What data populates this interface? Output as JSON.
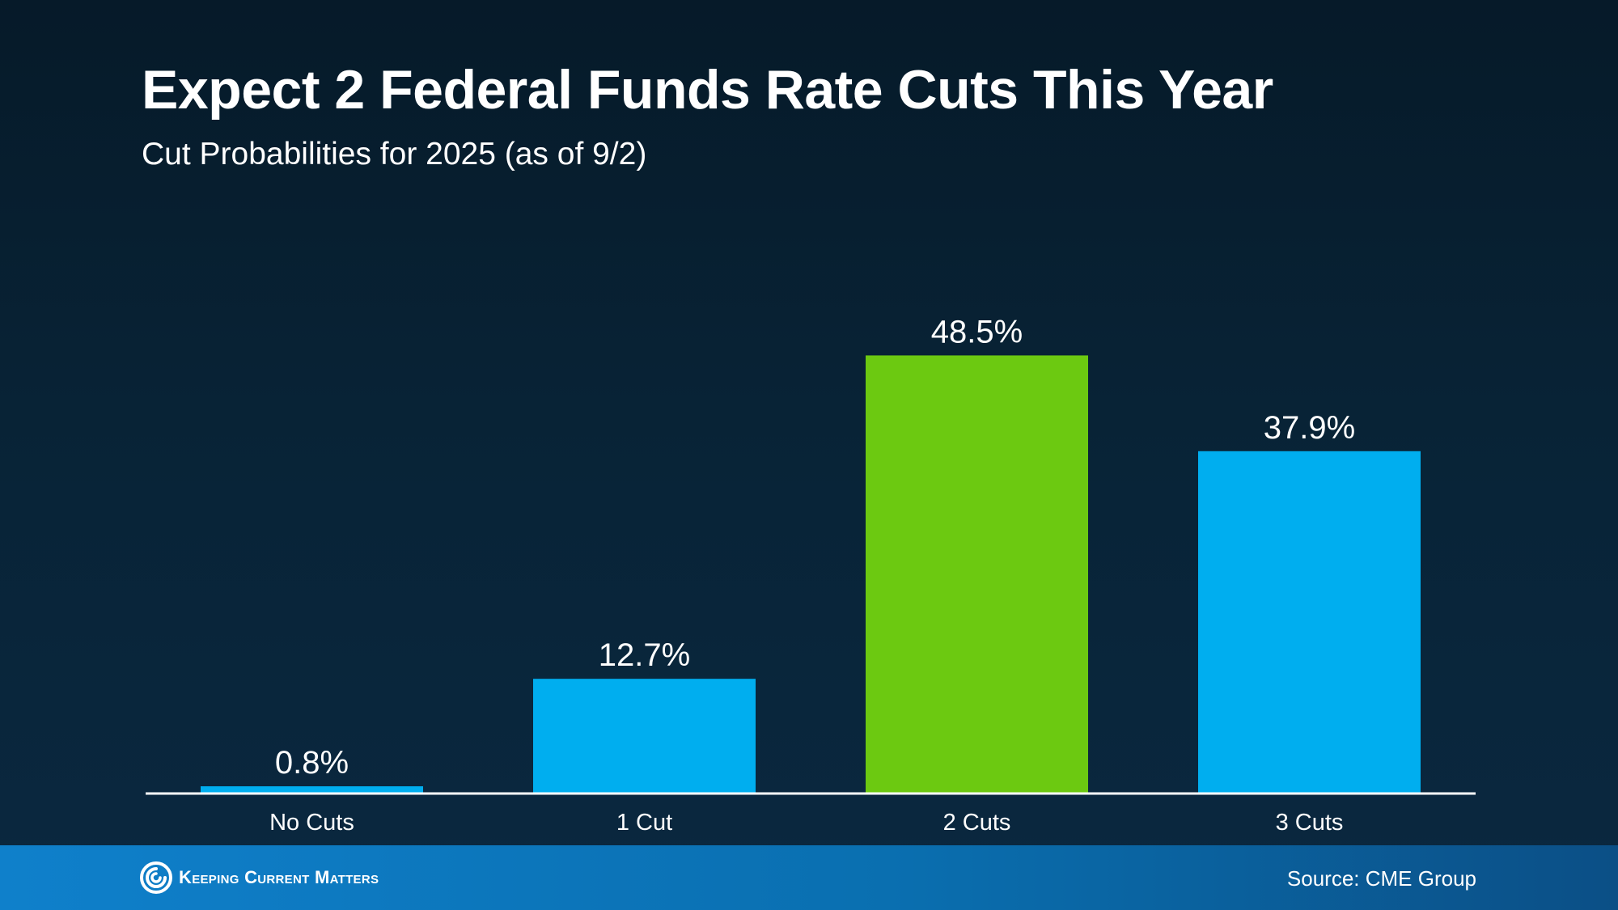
{
  "colors": {
    "primary_bar": "#00aeef",
    "highlight_bar": "#6cc911",
    "axis_line": "#ffffff",
    "text": "#ffffff"
  },
  "chart_data": {
    "type": "bar",
    "title": "Expect 2 Federal Funds Rate Cuts This Year",
    "subtitle": "Cut Probabilities for 2025 (as of 9/2)",
    "categories": [
      "No Cuts",
      "1 Cut",
      "2 Cuts",
      "3 Cuts"
    ],
    "values": [
      0.8,
      12.7,
      48.5,
      37.9
    ],
    "value_labels": [
      "0.8%",
      "12.7%",
      "48.5%",
      "37.9%"
    ],
    "highlight_index": 2,
    "ylim": [
      0,
      60
    ],
    "grid": false,
    "xlabel": "",
    "ylabel": ""
  },
  "footer": {
    "logo_icon": "swirl-logo-icon",
    "brand": "Keeping Current Matters",
    "source": "Source: CME Group"
  }
}
